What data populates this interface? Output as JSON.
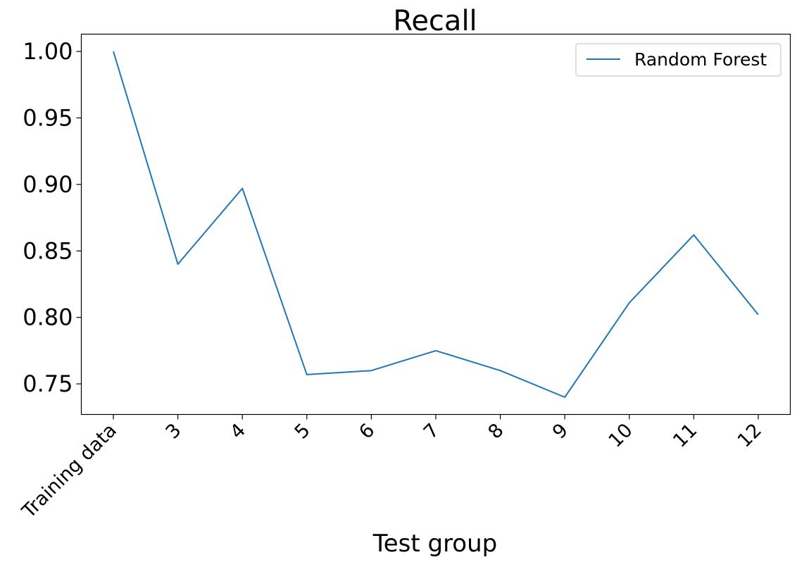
{
  "chart_data": {
    "type": "line",
    "title": "Recall",
    "xlabel": "Test group",
    "ylabel": "",
    "categories": [
      "Training data",
      "3",
      "4",
      "5",
      "6",
      "7",
      "8",
      "9",
      "10",
      "11",
      "12"
    ],
    "series": [
      {
        "name": "Random Forest",
        "color": "#1f77b4",
        "values": [
          1.0,
          0.84,
          0.897,
          0.757,
          0.76,
          0.775,
          0.76,
          0.74,
          0.811,
          0.862,
          0.802
        ]
      }
    ],
    "yticks": [
      "0.75",
      "0.80",
      "0.85",
      "0.90",
      "0.95",
      "1.00"
    ],
    "ylim": [
      0.727,
      1.013
    ],
    "grid": false,
    "legend": "upper-right"
  }
}
